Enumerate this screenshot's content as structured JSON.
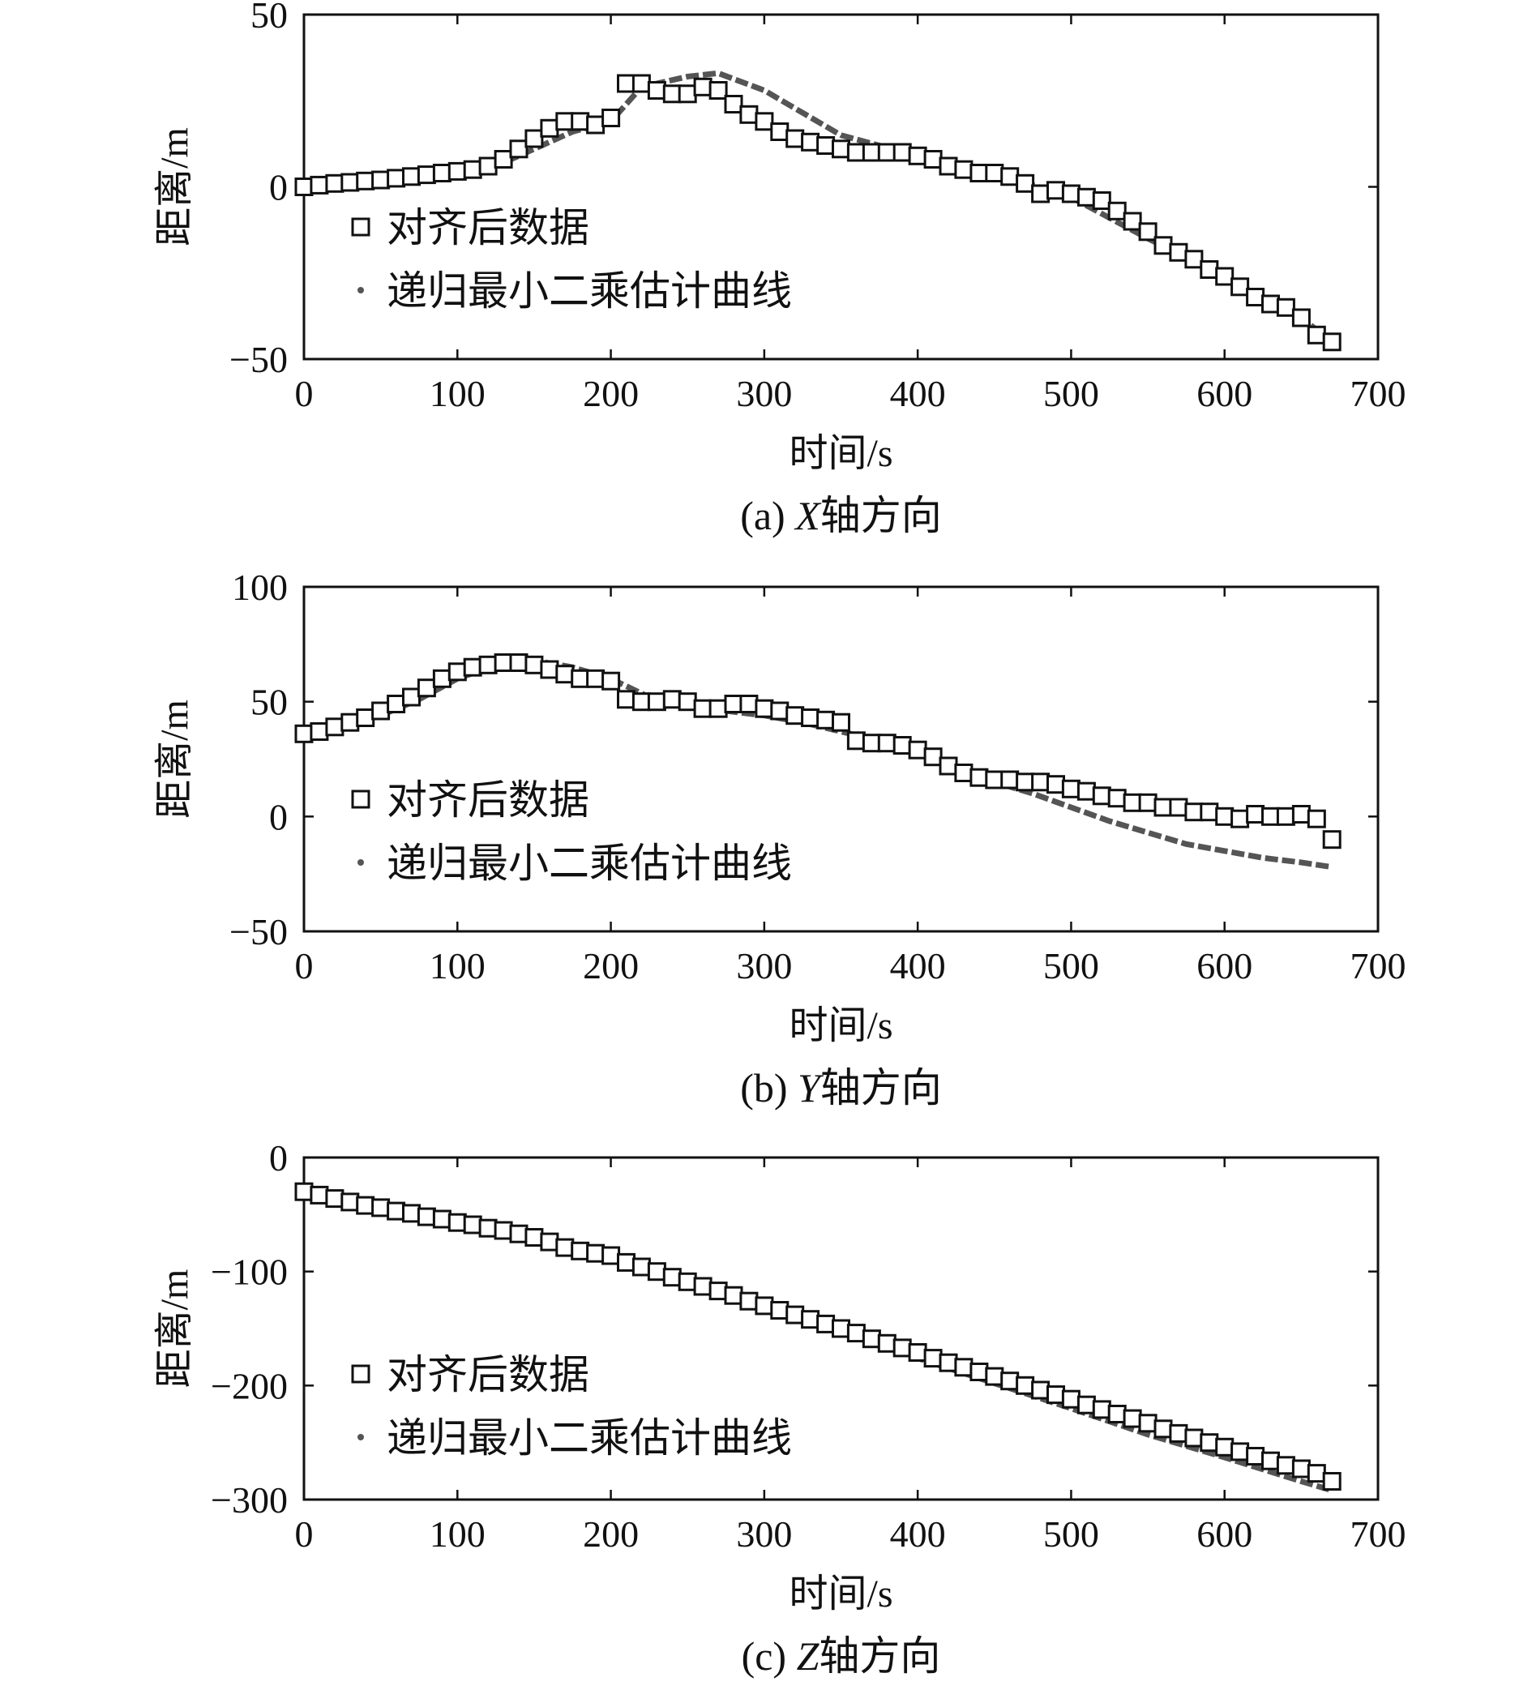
{
  "figure": {
    "panels": [
      {
        "id": "a",
        "caption_prefix": "(a) ",
        "caption_axis": "X",
        "caption_suffix": "轴方向",
        "xlabel": "时间/s",
        "ylabel": "距离/m",
        "legend": [
          "对齐后数据",
          "递归最小二乘估计曲线"
        ],
        "legend_position": "left"
      },
      {
        "id": "b",
        "caption_prefix": "(b) ",
        "caption_axis": "Y",
        "caption_suffix": "轴方向",
        "xlabel": "时间/s",
        "ylabel": "距离/m",
        "legend": [
          "对齐后数据",
          "递归最小二乘估计曲线"
        ],
        "legend_position": "left"
      },
      {
        "id": "c",
        "caption_prefix": "(c) ",
        "caption_axis": "Z",
        "caption_suffix": "轴方向",
        "xlabel": "时间/s",
        "ylabel": "距离/m",
        "legend": [
          "对齐后数据",
          "递归最小二乘估计曲线"
        ],
        "legend_position": "left"
      }
    ]
  },
  "colors": {
    "marker": "#111111",
    "curve": "#555555",
    "axes": "#111111"
  },
  "chart_data": [
    {
      "type": "scatter+line",
      "title": "(a) X轴方向",
      "xlabel": "时间/s",
      "ylabel": "距离/m",
      "xlim": [
        0,
        700
      ],
      "ylim": [
        -50,
        50
      ],
      "xticks": [
        0,
        100,
        200,
        300,
        400,
        500,
        600,
        700
      ],
      "xtick_labels": [
        "0",
        "100",
        "200",
        "300",
        "400",
        "500",
        "600",
        "700"
      ],
      "yticks": [
        -50,
        0,
        50
      ],
      "ytick_labels": [
        "−50",
        "0",
        "50"
      ],
      "series": [
        {
          "name": "对齐后数据",
          "style": "square-markers",
          "x": [
            0,
            10,
            20,
            30,
            40,
            50,
            60,
            70,
            80,
            90,
            100,
            110,
            120,
            130,
            140,
            150,
            160,
            170,
            180,
            190,
            200,
            210,
            220,
            230,
            240,
            250,
            260,
            270,
            280,
            290,
            300,
            310,
            320,
            330,
            340,
            350,
            360,
            370,
            380,
            390,
            400,
            410,
            420,
            430,
            440,
            450,
            460,
            470,
            480,
            490,
            500,
            510,
            520,
            530,
            540,
            550,
            560,
            570,
            580,
            590,
            600,
            610,
            620,
            630,
            640,
            650,
            660,
            670
          ],
          "y": [
            0,
            0.5,
            1,
            1.3,
            1.7,
            2,
            2.5,
            3,
            3.5,
            4,
            4.5,
            5,
            6,
            8,
            11,
            14,
            17,
            19,
            19,
            18,
            20,
            30,
            30,
            28,
            27,
            27,
            29,
            28,
            24,
            21,
            19,
            16,
            14,
            13,
            12,
            11,
            10,
            10,
            10,
            10,
            9,
            8,
            6,
            5,
            4,
            4,
            3,
            1,
            -2,
            -1,
            -2,
            -3,
            -4,
            -7,
            -10,
            -13,
            -17,
            -19,
            -21,
            -24,
            -26,
            -29,
            -32,
            -34,
            -35,
            -38,
            -43,
            -45
          ]
        },
        {
          "name": "递归最小二乘估计曲线",
          "style": "dotted-line",
          "x": [
            0,
            25,
            50,
            75,
            100,
            125,
            150,
            175,
            200,
            220,
            250,
            270,
            300,
            350,
            400,
            450,
            500,
            550,
            600,
            650,
            670
          ],
          "y": [
            0,
            1,
            2,
            3,
            4,
            6,
            11,
            16,
            19,
            29,
            32,
            33,
            28,
            15,
            9,
            4,
            -3,
            -15,
            -26,
            -38,
            -45
          ]
        }
      ]
    },
    {
      "type": "scatter+line",
      "title": "(b) Y轴方向",
      "xlabel": "时间/s",
      "ylabel": "距离/m",
      "xlim": [
        0,
        700
      ],
      "ylim": [
        -50,
        100
      ],
      "xticks": [
        0,
        100,
        200,
        300,
        400,
        500,
        600,
        700
      ],
      "xtick_labels": [
        "0",
        "100",
        "200",
        "300",
        "400",
        "500",
        "600",
        "700"
      ],
      "yticks": [
        -50,
        0,
        50,
        100
      ],
      "ytick_labels": [
        "−50",
        "0",
        "50",
        "100"
      ],
      "series": [
        {
          "name": "对齐后数据",
          "style": "square-markers",
          "x": [
            0,
            10,
            20,
            30,
            40,
            50,
            60,
            70,
            80,
            90,
            100,
            110,
            120,
            130,
            140,
            150,
            160,
            170,
            180,
            190,
            200,
            210,
            220,
            230,
            240,
            250,
            260,
            270,
            280,
            290,
            300,
            310,
            320,
            330,
            340,
            350,
            360,
            370,
            380,
            390,
            400,
            410,
            420,
            430,
            440,
            450,
            460,
            470,
            480,
            490,
            500,
            510,
            520,
            530,
            540,
            550,
            560,
            570,
            580,
            590,
            600,
            610,
            620,
            630,
            640,
            650,
            660,
            670
          ],
          "y": [
            36,
            37,
            39,
            41,
            43,
            46,
            49,
            52,
            56,
            60,
            63,
            65,
            66,
            67,
            67,
            66,
            64,
            62,
            60,
            60,
            59,
            51,
            50,
            50,
            51,
            50,
            47,
            47,
            49,
            49,
            47,
            46,
            44,
            43,
            42,
            41,
            33,
            32,
            32,
            31,
            29,
            26,
            22,
            19,
            17,
            16,
            16,
            15,
            15,
            14,
            12,
            11,
            9,
            8,
            6,
            6,
            4,
            4,
            2,
            2,
            0,
            -1,
            1,
            0,
            0,
            1,
            -1,
            -10
          ]
        },
        {
          "name": "递归最小二乘估计曲线",
          "style": "dotted-line",
          "x": [
            0,
            25,
            50,
            75,
            100,
            125,
            150,
            175,
            200,
            225,
            250,
            275,
            300,
            325,
            350,
            375,
            400,
            425,
            450,
            475,
            500,
            525,
            550,
            575,
            600,
            625,
            650,
            670
          ],
          "y": [
            35,
            39,
            44,
            51,
            60,
            66,
            68,
            65,
            60,
            52,
            48,
            46,
            44,
            41,
            37,
            33,
            28,
            22,
            15,
            10,
            4,
            -2,
            -7,
            -12,
            -15,
            -18,
            -20,
            -22
          ]
        }
      ]
    },
    {
      "type": "scatter+line",
      "title": "(c) Z轴方向",
      "xlabel": "时间/s",
      "ylabel": "距离/m",
      "xlim": [
        0,
        700
      ],
      "ylim": [
        -300,
        0
      ],
      "xticks": [
        0,
        100,
        200,
        300,
        400,
        500,
        600,
        700
      ],
      "xtick_labels": [
        "0",
        "100",
        "200",
        "300",
        "400",
        "500",
        "600",
        "700"
      ],
      "yticks": [
        -300,
        -200,
        -100,
        0
      ],
      "ytick_labels": [
        "−300",
        "−200",
        "−100",
        "0"
      ],
      "series": [
        {
          "name": "对齐后数据",
          "style": "square-markers",
          "x": [
            0,
            10,
            20,
            30,
            40,
            50,
            60,
            70,
            80,
            90,
            100,
            110,
            120,
            130,
            140,
            150,
            160,
            170,
            180,
            190,
            200,
            210,
            220,
            230,
            240,
            250,
            260,
            270,
            280,
            290,
            300,
            310,
            320,
            330,
            340,
            350,
            360,
            370,
            380,
            390,
            400,
            410,
            420,
            430,
            440,
            450,
            460,
            470,
            480,
            490,
            500,
            510,
            520,
            530,
            540,
            550,
            560,
            570,
            580,
            590,
            600,
            610,
            620,
            630,
            640,
            650,
            660,
            670
          ],
          "y": [
            -30,
            -33,
            -36,
            -39,
            -42,
            -44,
            -47,
            -49,
            -52,
            -54,
            -57,
            -59,
            -62,
            -64,
            -67,
            -70,
            -74,
            -79,
            -82,
            -84,
            -86,
            -92,
            -96,
            -100,
            -105,
            -109,
            -113,
            -117,
            -121,
            -126,
            -130,
            -134,
            -138,
            -142,
            -146,
            -150,
            -154,
            -159,
            -163,
            -167,
            -171,
            -176,
            -180,
            -184,
            -188,
            -192,
            -196,
            -200,
            -204,
            -208,
            -212,
            -217,
            -221,
            -225,
            -229,
            -233,
            -238,
            -242,
            -246,
            -250,
            -254,
            -258,
            -262,
            -266,
            -270,
            -273,
            -277,
            -284
          ]
        },
        {
          "name": "递归最小二乘估计曲线",
          "style": "dotted-line",
          "x": [
            0,
            50,
            100,
            150,
            200,
            250,
            300,
            350,
            400,
            450,
            500,
            550,
            600,
            650,
            670
          ],
          "y": [
            -33,
            -45,
            -57,
            -70,
            -86,
            -107,
            -130,
            -153,
            -176,
            -198,
            -220,
            -243,
            -263,
            -284,
            -292
          ]
        }
      ]
    }
  ]
}
